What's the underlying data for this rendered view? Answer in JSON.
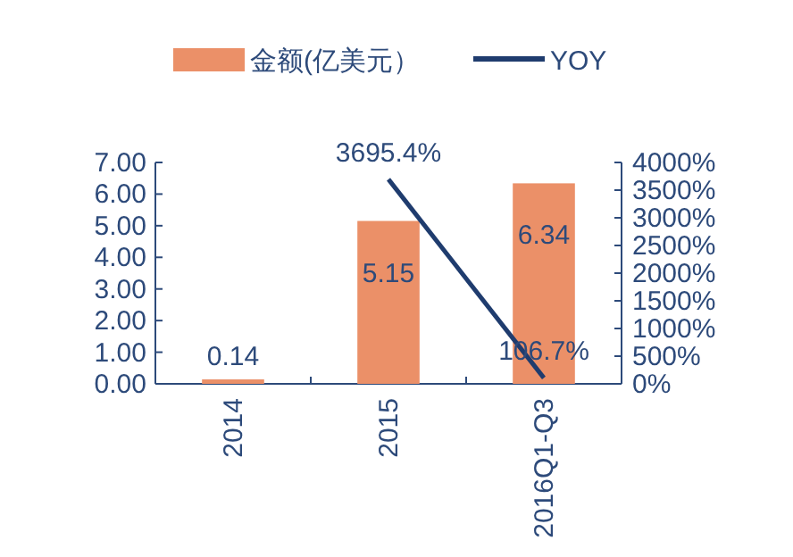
{
  "chart_data": {
    "type": "bar",
    "categories": [
      "2014",
      "2015",
      "2016Q1-Q3"
    ],
    "series": [
      {
        "name": "金额(亿美元）",
        "color": "#eb9068",
        "values": [
          0.14,
          5.15,
          6.34
        ],
        "value_labels": [
          "0.14",
          "5.15",
          "6.34"
        ]
      },
      {
        "name": "YOY",
        "type": "line",
        "axis": "y2",
        "color": "#1f3c6e",
        "values": [
          null,
          3695.4,
          106.7
        ],
        "value_labels": [
          null,
          "3695.4%",
          "106.7%"
        ]
      }
    ],
    "ylim": [
      0,
      7
    ],
    "yticks": [
      {
        "value": 0,
        "label": "0.00"
      },
      {
        "value": 1,
        "label": "1.00"
      },
      {
        "value": 2,
        "label": "2.00"
      },
      {
        "value": 3,
        "label": "3.00"
      },
      {
        "value": 4,
        "label": "4.00"
      },
      {
        "value": 5,
        "label": "5.00"
      },
      {
        "value": 6,
        "label": "6.00"
      },
      {
        "value": 7,
        "label": "7.00"
      }
    ],
    "y2lim": [
      0,
      4000
    ],
    "y2ticks": [
      {
        "value": 0,
        "label": "0%"
      },
      {
        "value": 500,
        "label": "500%"
      },
      {
        "value": 1000,
        "label": "1000%"
      },
      {
        "value": 1500,
        "label": "1500%"
      },
      {
        "value": 2000,
        "label": "2000%"
      },
      {
        "value": 2500,
        "label": "2500%"
      },
      {
        "value": 3000,
        "label": "3000%"
      },
      {
        "value": 3500,
        "label": "3500%"
      },
      {
        "value": 4000,
        "label": "4000%"
      }
    ],
    "legend": "top",
    "marker": "none",
    "grid": false
  }
}
